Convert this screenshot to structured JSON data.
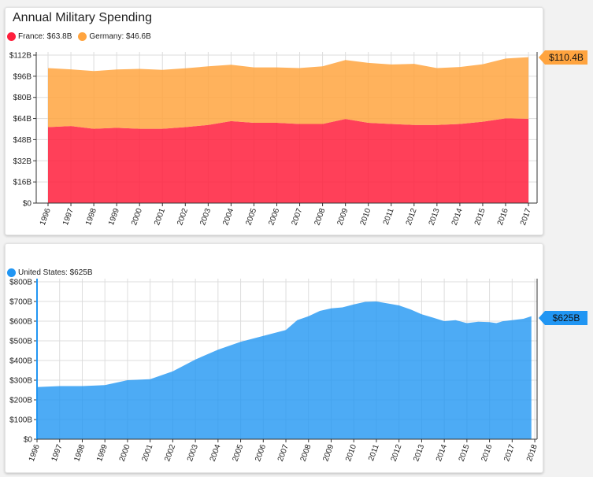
{
  "colors": {
    "france": "#ff1f3c",
    "germany": "#ffa43f",
    "united_states": "#2196f3"
  },
  "top": {
    "title": "Annual Military Spending",
    "legend": [
      {
        "label": "France: $63.8B",
        "color": "#ff1f3c"
      },
      {
        "label": "Germany: $46.6B",
        "color": "#ffa43f"
      }
    ],
    "badge": "$110.4B"
  },
  "bottom": {
    "legend": [
      {
        "label": "United States: $625B",
        "color": "#2196f3"
      }
    ],
    "badge": "$625B"
  },
  "chart_data": [
    {
      "type": "area",
      "stacked": true,
      "title": "Annual Military Spending",
      "x": [
        "1996",
        "1997",
        "1998",
        "1999",
        "2000",
        "2001",
        "2002",
        "2003",
        "2004",
        "2005",
        "2006",
        "2007",
        "2008",
        "2009",
        "2010",
        "2011",
        "2012",
        "2013",
        "2014",
        "2015",
        "2016",
        "2017"
      ],
      "y_ticks": [
        "$0",
        "$16B",
        "$32B",
        "$48B",
        "$64B",
        "$80B",
        "$96B",
        "$112B"
      ],
      "ylim": [
        0,
        118
      ],
      "grid": true,
      "legend_position": "top-left",
      "series": [
        {
          "name": "France",
          "color": "#ff1f3c",
          "values": [
            57.5,
            58.3,
            56.2,
            57.0,
            56.2,
            56.2,
            57.5,
            59.1,
            62.0,
            60.8,
            60.8,
            59.9,
            59.9,
            63.7,
            60.8,
            59.9,
            59.1,
            59.1,
            59.9,
            61.6,
            64.1,
            63.8
          ]
        },
        {
          "name": "Germany",
          "color": "#ffa43f",
          "values": [
            44.7,
            42.9,
            43.7,
            44.1,
            45.4,
            44.6,
            44.5,
            44.4,
            42.7,
            41.9,
            41.9,
            42.3,
            43.6,
            44.6,
            45.3,
            45.0,
            46.3,
            43.1,
            43.1,
            43.5,
            45.3,
            46.6
          ]
        }
      ],
      "highlight_value": "$110.4B"
    },
    {
      "type": "area",
      "x": [
        "1996",
        "1997",
        "1998",
        "1999",
        "2000",
        "2001",
        "2002",
        "2003",
        "2004",
        "2005",
        "2006",
        "2007",
        "2008",
        "2009",
        "2010",
        "2011",
        "2012",
        "2013",
        "2014",
        "2015",
        "2016",
        "2017",
        "2018"
      ],
      "y_ticks": [
        "$0",
        "$100B",
        "$200B",
        "$300B",
        "$400B",
        "$500B",
        "$600B",
        "$700B",
        "$800B"
      ],
      "ylim": [
        0,
        800
      ],
      "grid": true,
      "legend_position": "top-left",
      "series": [
        {
          "name": "United States",
          "color": "#2196f3",
          "points": [
            [
              1996.0,
              265
            ],
            [
              1997.0,
              270
            ],
            [
              1998.0,
              270
            ],
            [
              1999.0,
              275
            ],
            [
              2000.0,
              300
            ],
            [
              2001.0,
              305
            ],
            [
              2002.0,
              345
            ],
            [
              2003.0,
              405
            ],
            [
              2004.0,
              455
            ],
            [
              2005.0,
              495
            ],
            [
              2006.0,
              525
            ],
            [
              2007.0,
              555
            ],
            [
              2007.5,
              605
            ],
            [
              2008.0,
              625
            ],
            [
              2008.5,
              652
            ],
            [
              2009.0,
              665
            ],
            [
              2009.5,
              670
            ],
            [
              2010.0,
              685
            ],
            [
              2010.5,
              698
            ],
            [
              2011.0,
              700
            ],
            [
              2011.5,
              690
            ],
            [
              2012.0,
              680
            ],
            [
              2012.5,
              660
            ],
            [
              2013.0,
              635
            ],
            [
              2013.5,
              618
            ],
            [
              2014.0,
              600
            ],
            [
              2014.5,
              605
            ],
            [
              2015.0,
              590
            ],
            [
              2015.5,
              597
            ],
            [
              2016.0,
              595
            ],
            [
              2016.3,
              590
            ],
            [
              2016.6,
              600
            ],
            [
              2017.0,
              605
            ],
            [
              2017.5,
              612
            ],
            [
              2017.85,
              625
            ]
          ]
        }
      ],
      "highlight_value": "$625B"
    }
  ]
}
